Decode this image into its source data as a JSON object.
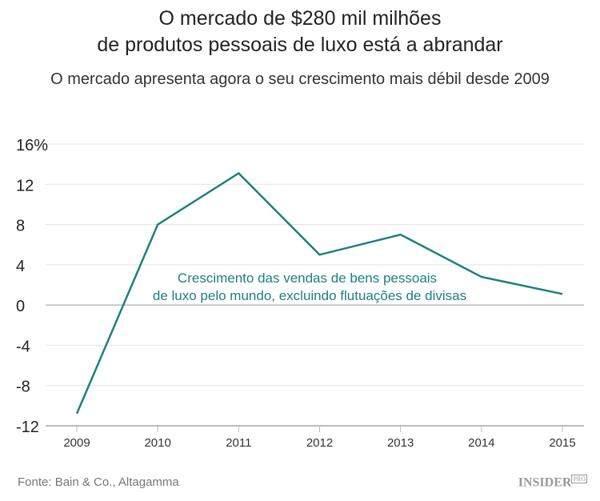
{
  "title_lines": [
    "O mercado de $280 mil milhões",
    "de produtos pessoais de luxo está a abrandar"
  ],
  "subtitle": "O mercado apresenta agora o seu crescimento mais débil desde 2009",
  "source": "Fonte: Bain & Co., Altagamma",
  "logo": {
    "main": "INSIDER",
    "sup": "PRO"
  },
  "chart_data": {
    "type": "line",
    "x": [
      "2009",
      "2010",
      "2011",
      "2012",
      "2013",
      "2014",
      "2015"
    ],
    "series": [
      {
        "name": "Crescimento das vendas de bens pessoais de luxo pelo mundo, excluindo flutuações de divisas",
        "values": [
          -10.8,
          8.0,
          13.1,
          5.0,
          7.0,
          2.8,
          1.1
        ],
        "color": "#1e7f80"
      }
    ],
    "annotation_lines": [
      "Crescimento das vendas de bens pessoais",
      "de luxo pelo mundo, excluindo flutuações de divisas"
    ],
    "yticks": [
      16,
      12,
      8,
      4,
      0,
      -4,
      -8,
      -12
    ],
    "ytick_labels": [
      "16%",
      "12",
      "8",
      "4",
      "0",
      "-4",
      "-8",
      "-12"
    ],
    "ylim": [
      -12,
      16
    ],
    "grid": true,
    "unit": "%"
  }
}
